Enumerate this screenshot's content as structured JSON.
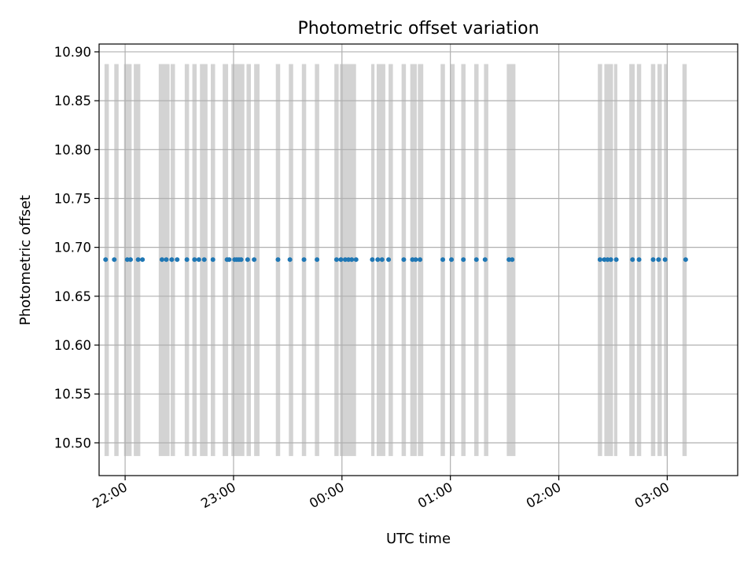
{
  "chart_data": {
    "type": "scatter",
    "title": "Photometric offset variation",
    "xlabel": "UTC time",
    "ylabel": "Photometric offset",
    "x_unit": "hours relative to 00:00 UTC",
    "xlim": [
      -2.24,
      3.65
    ],
    "ylim": [
      10.4665,
      10.908
    ],
    "grid": true,
    "marker_color": "#1f77b4",
    "band_color": "#d3d3d3",
    "x_ticks": [
      {
        "value": -2,
        "label": "22:00"
      },
      {
        "value": -1,
        "label": "23:00"
      },
      {
        "value": 0,
        "label": "00:00"
      },
      {
        "value": 1,
        "label": "01:00"
      },
      {
        "value": 2,
        "label": "02:00"
      },
      {
        "value": 3,
        "label": "03:00"
      }
    ],
    "y_ticks": [
      {
        "value": 10.5,
        "label": "10.50"
      },
      {
        "value": 10.55,
        "label": "10.55"
      },
      {
        "value": 10.6,
        "label": "10.60"
      },
      {
        "value": 10.65,
        "label": "10.65"
      },
      {
        "value": 10.7,
        "label": "10.70"
      },
      {
        "value": 10.75,
        "label": "10.75"
      },
      {
        "value": 10.8,
        "label": "10.80"
      },
      {
        "value": 10.85,
        "label": "10.85"
      },
      {
        "value": 10.9,
        "label": "10.90"
      }
    ],
    "band_range": [
      10.4865,
      10.8875
    ],
    "bands": [
      [
        -2.19,
        -2.15
      ],
      [
        -2.1,
        -2.06
      ],
      [
        -2.01,
        -1.94
      ],
      [
        -1.92,
        -1.86
      ],
      [
        -1.69,
        -1.59
      ],
      [
        -1.58,
        -1.54
      ],
      [
        -1.45,
        -1.41
      ],
      [
        -1.38,
        -1.34
      ],
      [
        -1.31,
        -1.24
      ],
      [
        -1.21,
        -1.17
      ],
      [
        -1.1,
        -1.05
      ],
      [
        -1.02,
        -0.9
      ],
      [
        -0.88,
        -0.84
      ],
      [
        -0.81,
        -0.76
      ],
      [
        -0.61,
        -0.57
      ],
      [
        -0.49,
        -0.45
      ],
      [
        -0.37,
        -0.33
      ],
      [
        -0.25,
        -0.21
      ],
      [
        -0.07,
        -0.03
      ],
      [
        -0.02,
        0.13
      ],
      [
        0.27,
        0.3
      ],
      [
        0.32,
        0.4
      ],
      [
        0.43,
        0.47
      ],
      [
        0.55,
        0.59
      ],
      [
        0.63,
        0.69
      ],
      [
        0.7,
        0.75
      ],
      [
        0.91,
        0.95
      ],
      [
        1.0,
        1.04
      ],
      [
        1.1,
        1.14
      ],
      [
        1.22,
        1.26
      ],
      [
        1.31,
        1.35
      ],
      [
        1.52,
        1.6
      ],
      [
        2.36,
        2.4
      ],
      [
        2.42,
        2.5
      ],
      [
        2.51,
        2.54
      ],
      [
        2.65,
        2.7
      ],
      [
        2.72,
        2.76
      ],
      [
        2.85,
        2.89
      ],
      [
        2.91,
        2.95
      ],
      [
        2.97,
        3.0
      ],
      [
        3.14,
        3.18
      ]
    ],
    "series": [
      {
        "x": [
          -2.18,
          -2.1,
          -1.98,
          -1.95,
          -1.88,
          -1.84,
          -1.66,
          -1.62,
          -1.57,
          -1.52,
          -1.43,
          -1.36,
          -1.32,
          -1.27,
          -1.19,
          -1.06,
          -1.04,
          -0.99,
          -0.97,
          -0.95,
          -0.93,
          -0.87,
          -0.81,
          -0.59,
          -0.48,
          -0.35,
          -0.23,
          -0.05,
          -0.01,
          0.03,
          0.06,
          0.09,
          0.13,
          0.28,
          0.33,
          0.37,
          0.43,
          0.57,
          0.65,
          0.68,
          0.72,
          0.93,
          1.01,
          1.12,
          1.24,
          1.32,
          1.54,
          1.57,
          2.38,
          2.42,
          2.45,
          2.48,
          2.53,
          2.68,
          2.74,
          2.87,
          2.92,
          2.98,
          3.17
        ],
        "y": [
          10.6875,
          10.6875,
          10.6875,
          10.6875,
          10.6875,
          10.6875,
          10.6875,
          10.6875,
          10.6875,
          10.6875,
          10.6875,
          10.6875,
          10.6875,
          10.6875,
          10.6875,
          10.6875,
          10.6875,
          10.6875,
          10.6875,
          10.6875,
          10.6875,
          10.6875,
          10.6875,
          10.6875,
          10.6875,
          10.6875,
          10.6875,
          10.6875,
          10.6875,
          10.6875,
          10.6875,
          10.6875,
          10.6875,
          10.6875,
          10.6875,
          10.6875,
          10.6875,
          10.6875,
          10.6875,
          10.6875,
          10.6875,
          10.6875,
          10.6875,
          10.6875,
          10.6875,
          10.6875,
          10.6875,
          10.6875,
          10.6875,
          10.6875,
          10.6875,
          10.6875,
          10.6875,
          10.6875,
          10.6875,
          10.6875,
          10.6875,
          10.6875,
          10.6875
        ]
      }
    ]
  }
}
